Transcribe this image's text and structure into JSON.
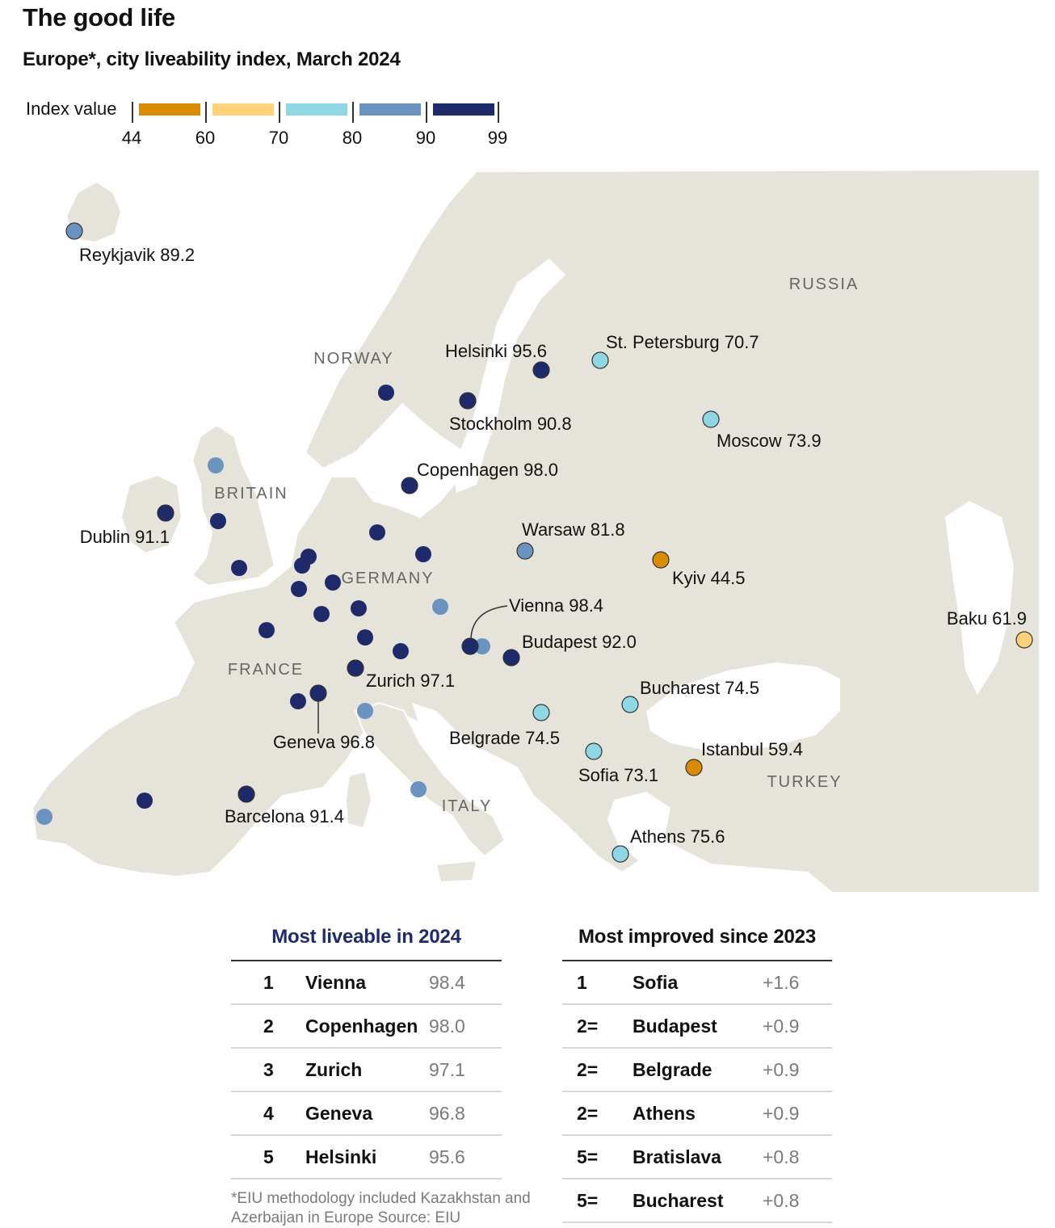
{
  "title": "The good life",
  "subtitle": "Europe*, city liveability index, March 2024",
  "legend": {
    "label": "Index value",
    "bins": [
      {
        "from": 44,
        "to": 60,
        "color": "#d98c00"
      },
      {
        "from": 60,
        "to": 70,
        "color": "#ffd27a"
      },
      {
        "from": 70,
        "to": 80,
        "color": "#8fd8e3"
      },
      {
        "from": 80,
        "to": 90,
        "color": "#6b93c0"
      },
      {
        "from": 90,
        "to": 99,
        "color": "#1f2a6b"
      }
    ],
    "ticks": [
      "44",
      "60",
      "70",
      "80",
      "90",
      "99"
    ]
  },
  "map": {
    "land_color": "#e6e3da",
    "border_color": "#ffffff",
    "countries": [
      "RUSSIA",
      "NORWAY",
      "BRITAIN",
      "GERMANY",
      "FRANCE",
      "ITALY",
      "TURKEY"
    ],
    "labelled_cities": [
      {
        "label": "Reykjavik 89.2",
        "value": 89.2
      },
      {
        "label": "Helsinki 95.6",
        "value": 95.6
      },
      {
        "label": "St. Petersburg 70.7",
        "value": 70.7
      },
      {
        "label": "Stockholm 90.8",
        "value": 90.8
      },
      {
        "label": "Moscow 73.9",
        "value": 73.9
      },
      {
        "label": "Copenhagen 98.0",
        "value": 98.0
      },
      {
        "label": "Dublin 91.1",
        "value": 91.1
      },
      {
        "label": "Warsaw 81.8",
        "value": 81.8
      },
      {
        "label": "Kyiv 44.5",
        "value": 44.5
      },
      {
        "label": "Vienna 98.4",
        "value": 98.4
      },
      {
        "label": "Baku 61.9",
        "value": 61.9
      },
      {
        "label": "Budapest 92.0",
        "value": 92.0
      },
      {
        "label": "Zurich 97.1",
        "value": 97.1
      },
      {
        "label": "Bucharest 74.5",
        "value": 74.5
      },
      {
        "label": "Geneva 96.8",
        "value": 96.8
      },
      {
        "label": "Belgrade 74.5",
        "value": 74.5
      },
      {
        "label": "Istanbul 59.4",
        "value": 59.4
      },
      {
        "label": "Sofia 73.1",
        "value": 73.1
      },
      {
        "label": "Barcelona 91.4",
        "value": 91.4
      },
      {
        "label": "Athens 75.6",
        "value": 75.6
      }
    ]
  },
  "table_liveable": {
    "title": "Most liveable in 2024",
    "title_color": "#1f2a6b",
    "rows": [
      {
        "rank": "1",
        "city": "Vienna",
        "value": "98.4"
      },
      {
        "rank": "2",
        "city": "Copenhagen",
        "value": "98.0"
      },
      {
        "rank": "3",
        "city": "Zurich",
        "value": "97.1"
      },
      {
        "rank": "4",
        "city": "Geneva",
        "value": "96.8"
      },
      {
        "rank": "5",
        "city": "Helsinki",
        "value": "95.6"
      }
    ]
  },
  "table_improved": {
    "title": "Most improved since 2023",
    "rows": [
      {
        "rank": "1",
        "city": "Sofia",
        "value": "+1.6"
      },
      {
        "rank": "2=",
        "city": "Budapest",
        "value": "+0.9"
      },
      {
        "rank": "2=",
        "city": "Belgrade",
        "value": "+0.9"
      },
      {
        "rank": "2=",
        "city": "Athens",
        "value": "+0.9"
      },
      {
        "rank": "5=",
        "city": "Bratislava",
        "value": "+0.8"
      },
      {
        "rank": "5=",
        "city": "Bucharest",
        "value": "+0.8"
      }
    ]
  },
  "footnote": "*EIU methodology included Kazakhstan and Azerbaijan in Europe Source: EIU"
}
